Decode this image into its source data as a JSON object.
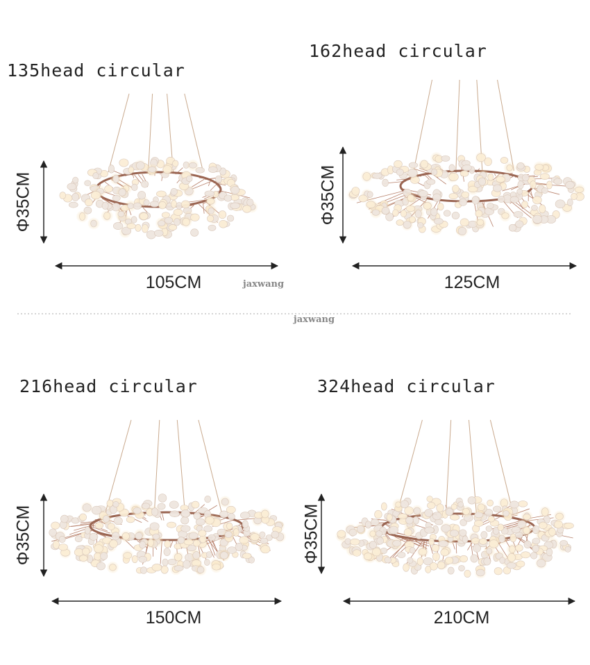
{
  "panels": [
    {
      "title": "135head circular",
      "height": "Φ35CM",
      "width": "105CM"
    },
    {
      "title": "162head circular",
      "height": "Φ35CM",
      "width": "125CM"
    },
    {
      "title": "216head circular",
      "height": "Φ35CM",
      "width": "150CM"
    },
    {
      "title": "324head circular",
      "height": "Φ35CM",
      "width": "210CM"
    }
  ],
  "watermarks": [
    "jaxwang",
    "jaxwang"
  ]
}
